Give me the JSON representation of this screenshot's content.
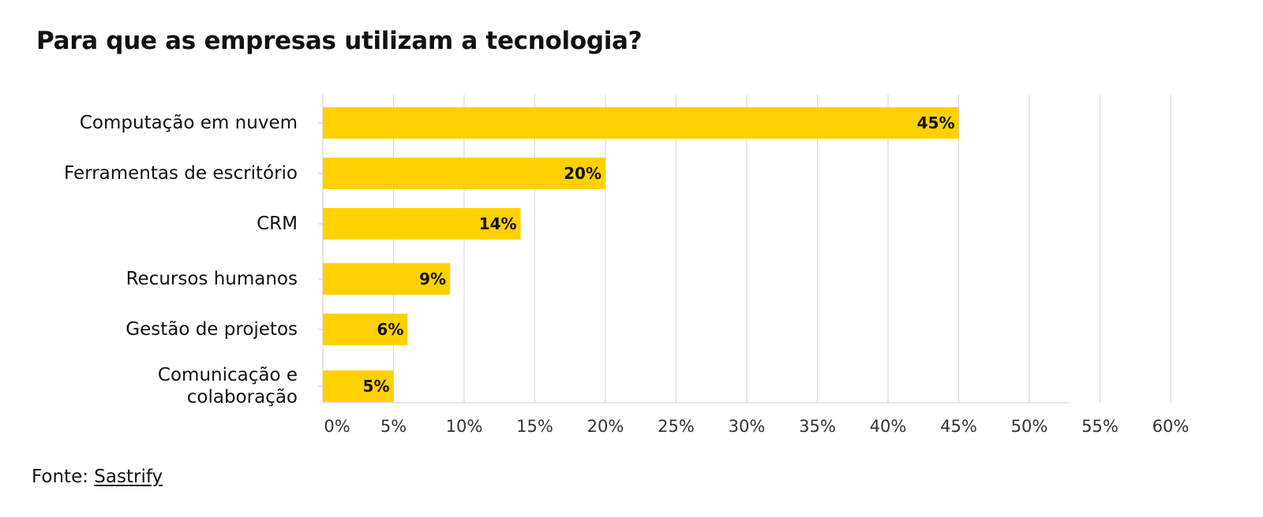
{
  "chart_data": {
    "type": "bar",
    "orientation": "horizontal",
    "title": "Para que as empresas utilizam a tecnologia?",
    "categories": [
      [
        "Computação em nuvem"
      ],
      [
        "Ferramentas de escritório"
      ],
      [
        "CRM"
      ],
      [
        "Recursos humanos"
      ],
      [
        "Gestão de projetos"
      ],
      [
        "Comunicação e",
        "colaboração"
      ]
    ],
    "values": [
      45,
      20,
      14,
      9,
      6,
      5
    ],
    "data_labels": [
      "45%",
      "20%",
      "14%",
      "9%",
      "6%",
      "5%"
    ],
    "xlim": [
      0,
      60
    ],
    "x_ticks": [
      0,
      5,
      10,
      15,
      20,
      25,
      30,
      35,
      40,
      45,
      50,
      55,
      60
    ],
    "x_tick_labels": [
      "0%",
      "5%",
      "10%",
      "15%",
      "20%",
      "25%",
      "30%",
      "35%",
      "40%",
      "45%",
      "50%",
      "55%",
      "60%"
    ],
    "grid": "vertical",
    "legend": "none",
    "colors": {
      "bar": "#FFD100",
      "grid": "#d6d6d6",
      "axis": "#cfcfcf",
      "text": "#111111",
      "tick_text": "#333333"
    }
  },
  "source": {
    "label": "Fonte:",
    "link": "Sastrify"
  }
}
